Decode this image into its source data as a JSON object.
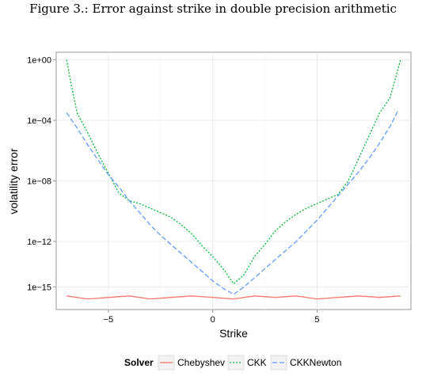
{
  "caption": "Figure 3.: Error against strike in double precision arithmetic",
  "chart_data": {
    "type": "line",
    "title": "",
    "xlabel": "Strike",
    "ylabel": "volatility error",
    "xlim": [
      -7.5,
      9.5
    ],
    "ylim_log10": [
      -16.5,
      0.5
    ],
    "y_scale": "log",
    "grid": true,
    "x_ticks": [
      -5,
      0,
      5
    ],
    "x_tick_labels": [
      "−5",
      "0",
      "5"
    ],
    "y_ticks_log10": [
      0,
      -4,
      -8,
      -12,
      -15
    ],
    "y_tick_labels": [
      "1e+00",
      "1e−04",
      "1e−08",
      "1e−12",
      "1e−15"
    ],
    "legend": {
      "title": "Solver",
      "position": "bottom",
      "entries": [
        "Chebyshev",
        "CKK",
        "CKKNewton"
      ]
    },
    "series": [
      {
        "name": "Chebyshev",
        "color": "#F8766D",
        "dash": "solid",
        "x": [
          -7,
          -6,
          -5,
          -4,
          -3,
          -2,
          -1,
          0,
          1,
          2,
          3,
          4,
          5,
          6,
          7,
          8,
          9
        ],
        "y_log10": [
          -15.6,
          -15.8,
          -15.7,
          -15.6,
          -15.8,
          -15.7,
          -15.6,
          -15.7,
          -15.8,
          -15.6,
          -15.7,
          -15.6,
          -15.8,
          -15.7,
          -15.6,
          -15.7,
          -15.6
        ]
      },
      {
        "name": "CKK",
        "color": "#00BA38",
        "dash": "dotted",
        "x": [
          -7,
          -6.8,
          -6.5,
          -6,
          -5.5,
          -5,
          -4.5,
          -4,
          -3.5,
          -3,
          -2.5,
          -2,
          -1.5,
          -1,
          -0.5,
          0,
          0.5,
          1,
          1.5,
          2,
          2.5,
          3,
          3.5,
          4,
          4.5,
          5,
          5.5,
          6,
          6.5,
          7,
          7.5,
          8,
          8.5,
          8.8,
          9
        ],
        "y_log10": [
          0,
          -1.5,
          -3.5,
          -4.8,
          -6.2,
          -7.5,
          -8.8,
          -9.3,
          -9.5,
          -9.8,
          -10.1,
          -10.4,
          -10.9,
          -11.5,
          -12.3,
          -13,
          -13.8,
          -14.8,
          -14.2,
          -13,
          -12.2,
          -11.3,
          -10.7,
          -10.2,
          -9.8,
          -9.5,
          -9.2,
          -8.9,
          -8,
          -6.5,
          -5,
          -3.5,
          -2.5,
          -1,
          0
        ]
      },
      {
        "name": "CKKNewton",
        "color": "#619CFF",
        "dash": "dashed",
        "x": [
          -7,
          -6.5,
          -6,
          -5.5,
          -5,
          -4.5,
          -4,
          -3.5,
          -3,
          -2.5,
          -2,
          -1.5,
          -1,
          -0.5,
          0,
          0.5,
          1,
          1.5,
          2,
          2.5,
          3,
          3.5,
          4,
          4.5,
          5,
          5.5,
          6,
          6.5,
          7,
          7.5,
          8,
          8.5,
          8.9
        ],
        "y_log10": [
          -3.5,
          -4.5,
          -5.6,
          -6.6,
          -7.6,
          -8.4,
          -9.3,
          -10.1,
          -10.9,
          -11.6,
          -12.2,
          -12.8,
          -13.4,
          -14.0,
          -14.6,
          -15.1,
          -15.5,
          -15.0,
          -14.4,
          -13.8,
          -13.2,
          -12.6,
          -12.0,
          -11.3,
          -10.6,
          -9.8,
          -9.0,
          -8.2,
          -7.4,
          -6.5,
          -5.5,
          -4.4,
          -3.3
        ]
      }
    ]
  }
}
